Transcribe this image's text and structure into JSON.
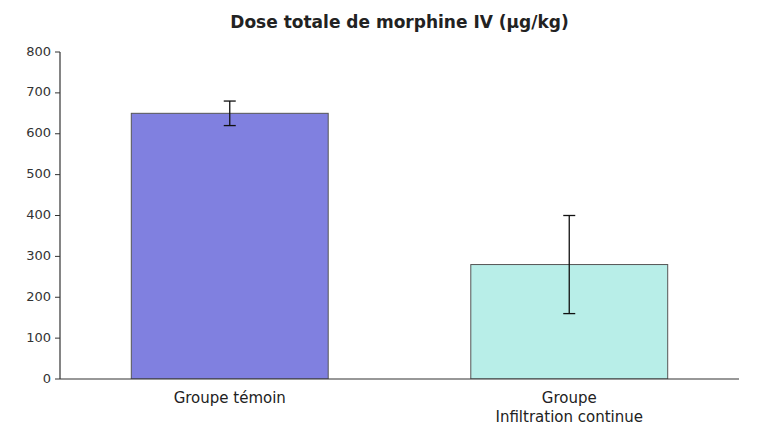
{
  "chart_data": {
    "type": "bar",
    "title": "Dose totale de morphine IV (μg/kg)",
    "categories": [
      "Groupe témoin",
      "Groupe\nInfiltration continue"
    ],
    "values": [
      650,
      280
    ],
    "errors": [
      30,
      120
    ],
    "colors": [
      "#8080e0",
      "#b8eee8"
    ],
    "ylim": [
      0,
      800
    ],
    "yticks": [
      0,
      100,
      200,
      300,
      400,
      500,
      600,
      700,
      800
    ],
    "grid": false
  }
}
